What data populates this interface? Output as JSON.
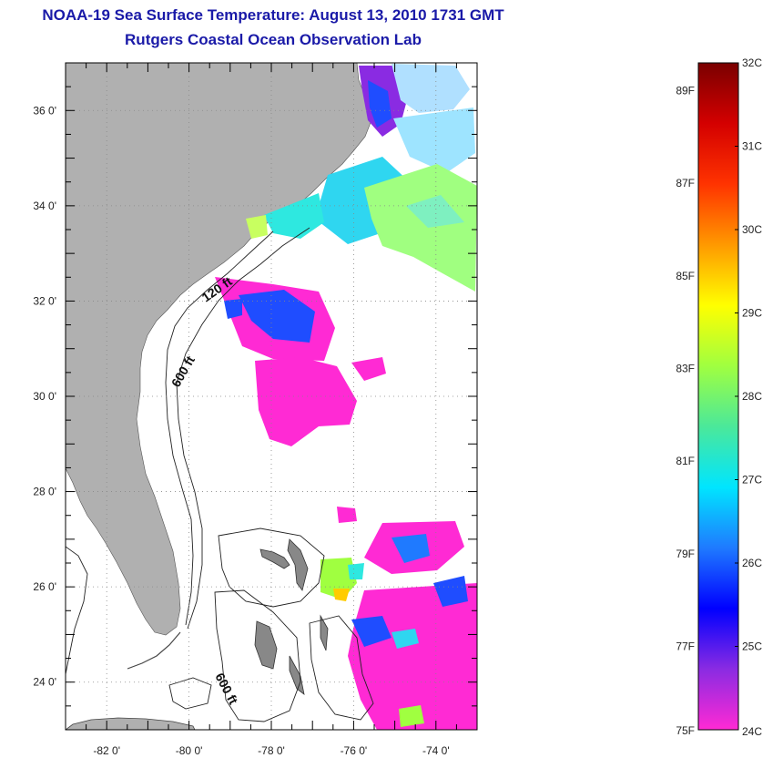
{
  "header": {
    "title": "NOAA-19 Sea Surface Temperature:  August 13, 2010 1731 GMT",
    "subtitle": "Rutgers Coastal Ocean Observation Lab"
  },
  "map": {
    "lon_range": [
      -83,
      -73
    ],
    "lat_range": [
      23,
      37
    ],
    "lon_ticks": [
      "-82 0'",
      "-80 0'",
      "-78 0'",
      "-76 0'",
      "-74 0'"
    ],
    "lat_ticks": [
      "24 0'",
      "26 0'",
      "28 0'",
      "30 0'",
      "32 0'",
      "34 0'",
      "36 0'"
    ],
    "isobaths": [
      {
        "label": "120 ft"
      },
      {
        "label": "600 ft"
      },
      {
        "label": "600 ft"
      }
    ],
    "colors": {
      "land": "#b0b0b0",
      "ocean": "#ffffff"
    }
  },
  "colorbar": {
    "celsius_labels": [
      "32C",
      "31C",
      "30C",
      "29C",
      "28C",
      "27C",
      "26C",
      "25C",
      "24C"
    ],
    "fahrenheit_labels": [
      "89F",
      "87F",
      "85F",
      "83F",
      "81F",
      "79F",
      "77F",
      "75F"
    ],
    "range_c": [
      24,
      32
    ],
    "gradient": [
      "#ff2ad4",
      "#8a2be2",
      "#0000ff",
      "#1f7aff",
      "#00e5ff",
      "#4be89a",
      "#a0ff40",
      "#ffff00",
      "#ff9900",
      "#ff3300",
      "#d40000",
      "#7a0000"
    ]
  }
}
